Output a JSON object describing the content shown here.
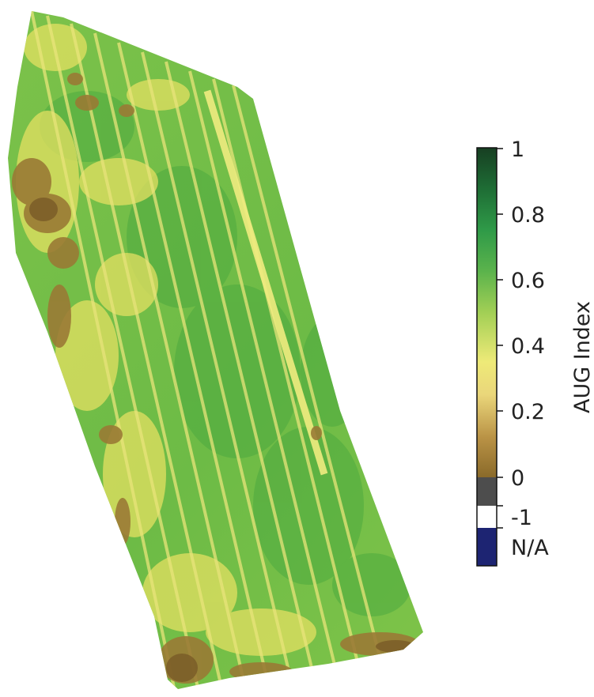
{
  "map": {
    "description_colors": {
      "field_base": "#77c244",
      "field_dark_green": "#4aa83e",
      "field_yellow": "#e3e060",
      "field_brown": "#9a7a35",
      "field_dark_brown": "#7a5d28"
    }
  },
  "colorbar": {
    "title": "AUG Index",
    "ticks": [
      {
        "value": "1"
      },
      {
        "value": "0.8"
      },
      {
        "value": "0.6"
      },
      {
        "value": "0.4"
      },
      {
        "value": "0.2"
      },
      {
        "value": "0"
      },
      {
        "value": "-1"
      },
      {
        "value": "N/A"
      }
    ],
    "gradient_stops": [
      "#173f22",
      "#1e6d35",
      "#2f9a48",
      "#5bb34c",
      "#a2cf55",
      "#eeea78",
      "#ead67a",
      "#b99245",
      "#8a6a2a"
    ],
    "category_colors": {
      "zero": "#4d4d4d",
      "minus_one": "#ffffff",
      "na": "#1d2472"
    }
  }
}
